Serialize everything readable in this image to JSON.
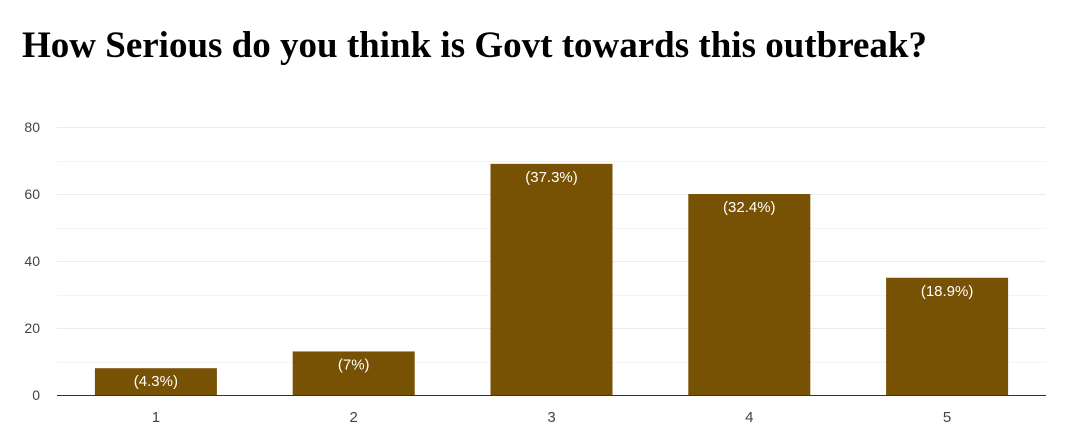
{
  "chart_data": {
    "type": "bar",
    "title": "How Serious do you think is Govt towards this outbreak?",
    "xlabel": "",
    "ylabel": "",
    "categories": [
      "1",
      "2",
      "3",
      "4",
      "5"
    ],
    "values": [
      8,
      13,
      69,
      60,
      35
    ],
    "data_labels": [
      "(4.3%)",
      "(7%)",
      "(37.3%)",
      "(32.4%)",
      "(18.9%)"
    ],
    "ylim": [
      0,
      80
    ],
    "yticks": [
      "0",
      "20",
      "40",
      "60",
      "80"
    ],
    "grid": true,
    "legend": "none",
    "bar_color": "#775104",
    "label_color": "#ffffff",
    "grid_color": "#ebebeb",
    "minor_grid_color": "#f4f4f4",
    "axis_color": "#333333",
    "tick_label_color": "#444444"
  }
}
